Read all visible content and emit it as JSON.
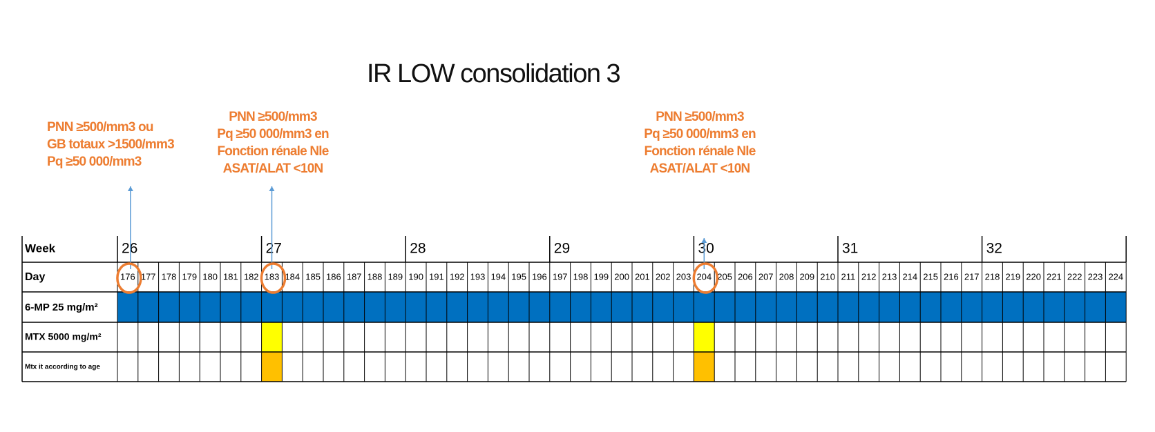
{
  "title": "IR LOW consolidation 3",
  "notes": [
    {
      "lines": [
        "PNN ≥500/mm3 ou",
        "GB totaux >1500/mm3",
        "Pq ≥50 000/mm3"
      ]
    },
    {
      "lines": [
        "PNN ≥500/mm3",
        "Pq ≥50 000/mm3 en",
        "Fonction rénale Nle",
        "ASAT/ALAT <10N"
      ]
    },
    {
      "lines": [
        "PNN ≥500/mm3",
        "Pq ≥50 000/mm3 en",
        "Fonction rénale Nle",
        "ASAT/ALAT <10N"
      ]
    }
  ],
  "table": {
    "row_labels": {
      "week": "Week",
      "day": "Day",
      "mp": "6-MP 25 mg/m²",
      "mtx": "MTX 5000 mg/m²",
      "mtx_it": "Mtx it according to age"
    },
    "weeks": [
      "26",
      "27",
      "28",
      "29",
      "30",
      "31",
      "32"
    ],
    "days": [
      "176",
      "177",
      "178",
      "179",
      "180",
      "181",
      "182",
      "183",
      "184",
      "185",
      "186",
      "187",
      "188",
      "189",
      "190",
      "191",
      "192",
      "193",
      "194",
      "195",
      "196",
      "197",
      "198",
      "199",
      "200",
      "201",
      "202",
      "203",
      "204",
      "205",
      "206",
      "207",
      "208",
      "209",
      "210",
      "211",
      "212",
      "213",
      "214",
      "215",
      "216",
      "217",
      "218",
      "219",
      "220",
      "221",
      "222",
      "223",
      "224"
    ],
    "circled_days": [
      "176",
      "183",
      "204"
    ],
    "mp_days_all": true,
    "mtx_days": [
      "183",
      "204"
    ],
    "mtx_it_days": [
      "183",
      "204"
    ],
    "arrow_days": [
      "176",
      "183",
      "204"
    ]
  },
  "colors": {
    "mp_fill": "#0070c0",
    "mtx_fill": "#ffff00",
    "mtx_it_fill": "#ffc000",
    "circle": "#ed7d31",
    "arrow": "#5b9bd5",
    "note_text": "#ed7d31",
    "grid": "#000000"
  }
}
